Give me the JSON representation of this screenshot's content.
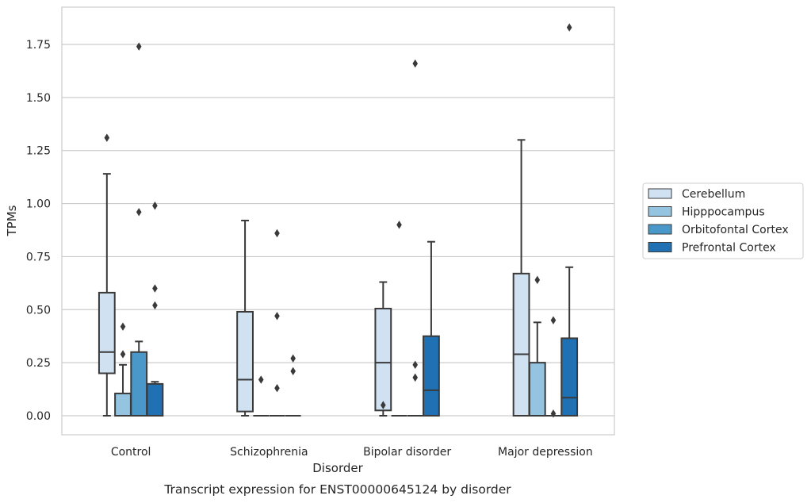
{
  "chart_data": {
    "type": "box",
    "xlabel": "Disorder",
    "ylabel": "TPMs",
    "caption": "Transcript expression for ENST00000645124 by disorder",
    "categories": [
      "Control",
      "Schizophrenia",
      "Bipolar disorder",
      "Major depression"
    ],
    "yticks": [
      "0.00",
      "0.25",
      "0.50",
      "0.75",
      "1.00",
      "1.25",
      "1.50",
      "1.75"
    ],
    "ylim": [
      -0.09,
      1.92
    ],
    "grid": "horizontal",
    "legend_position": "right",
    "series": [
      {
        "name": "Cerebellum",
        "color": "#d0e1f2",
        "boxes": [
          {
            "min": 0.0,
            "q1": 0.2,
            "median": 0.3,
            "q3": 0.58,
            "max": 1.14,
            "outliers": [
              1.31
            ]
          },
          {
            "min": 0.0,
            "q1": 0.02,
            "median": 0.17,
            "q3": 0.49,
            "max": 0.92,
            "outliers": []
          },
          {
            "min": 0.0,
            "q1": 0.025,
            "median": 0.25,
            "q3": 0.505,
            "max": 0.63,
            "outliers": [
              0.05
            ]
          },
          {
            "min": 0.0,
            "q1": 0.0,
            "median": 0.29,
            "q3": 0.67,
            "max": 1.3,
            "outliers": []
          }
        ]
      },
      {
        "name": "Hipppocampus",
        "color": "#94c4df",
        "boxes": [
          {
            "min": 0.0,
            "q1": 0.0,
            "median": 0.0,
            "q3": 0.105,
            "max": 0.24,
            "outliers": [
              0.29,
              0.42
            ]
          },
          {
            "min": 0.0,
            "q1": 0.0,
            "median": 0.0,
            "q3": 0.0,
            "max": 0.0,
            "outliers": [
              0.17
            ]
          },
          {
            "min": 0.0,
            "q1": 0.0,
            "median": 0.0,
            "q3": 0.0,
            "max": 0.0,
            "outliers": [
              0.9
            ]
          },
          {
            "min": 0.0,
            "q1": 0.0,
            "median": 0.0,
            "q3": 0.25,
            "max": 0.44,
            "outliers": [
              0.64
            ]
          }
        ]
      },
      {
        "name": "Orbitofontal Cortex",
        "color": "#4a98c9",
        "boxes": [
          {
            "min": 0.0,
            "q1": 0.0,
            "median": 0.0,
            "q3": 0.3,
            "max": 0.35,
            "outliers": [
              0.96,
              1.74
            ]
          },
          {
            "min": 0.0,
            "q1": 0.0,
            "median": 0.0,
            "q3": 0.0,
            "max": 0.0,
            "outliers": [
              0.13,
              0.47,
              0.86
            ]
          },
          {
            "min": 0.0,
            "q1": 0.0,
            "median": 0.0,
            "q3": 0.0,
            "max": 0.0,
            "outliers": [
              0.18,
              0.24,
              1.66
            ]
          },
          {
            "min": 0.0,
            "q1": 0.0,
            "median": 0.0,
            "q3": 0.0,
            "max": 0.0,
            "outliers": [
              0.01,
              0.45
            ]
          }
        ]
      },
      {
        "name": "Prefrontal Cortex",
        "color": "#2070b4",
        "boxes": [
          {
            "min": 0.0,
            "q1": 0.0,
            "median": 0.0,
            "q3": 0.15,
            "max": 0.16,
            "outliers": [
              0.52,
              0.6,
              0.99
            ]
          },
          {
            "min": 0.0,
            "q1": 0.0,
            "median": 0.0,
            "q3": 0.0,
            "max": 0.0,
            "outliers": [
              0.21,
              0.27
            ]
          },
          {
            "min": 0.0,
            "q1": 0.0,
            "median": 0.12,
            "q3": 0.375,
            "max": 0.82,
            "outliers": []
          },
          {
            "min": 0.0,
            "q1": 0.0,
            "median": 0.085,
            "q3": 0.365,
            "max": 0.7,
            "outliers": [
              1.83
            ]
          }
        ]
      }
    ]
  }
}
